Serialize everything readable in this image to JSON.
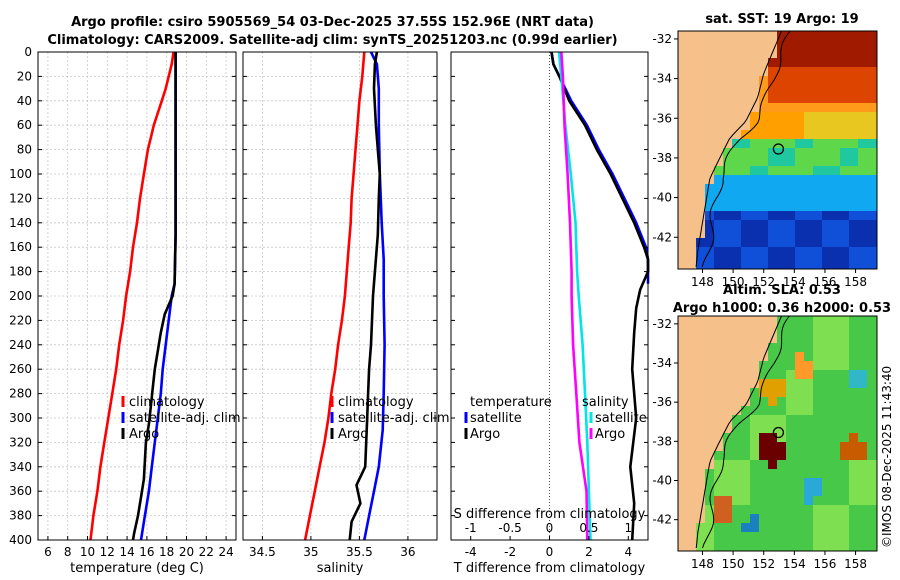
{
  "header": {
    "title_line1": "Argo profile: csiro 5905569_54 03-Dec-2025 37.55S 152.96E (NRT data)",
    "title_line2": "Climatology: CARS2009. Satellite-adj clim: synTS_20251203.nc (0.99d earlier)"
  },
  "maps": {
    "sst_title": "sat. SST: 19 Argo: 19",
    "sla_title1": "Altim. SLA: 0.53",
    "sla_title2": "Argo h1000: 0.36 h2000: 0.53",
    "lat_ticks": [
      "-32",
      "-34",
      "-36",
      "-38",
      "-40",
      "-42"
    ],
    "lon_ticks": [
      "148",
      "150",
      "152",
      "154",
      "156",
      "158"
    ],
    "argo_lon": 152.96,
    "argo_lat": -37.55
  },
  "credit": "©IMOS 08-Dec-2025 11:43:40",
  "colors": {
    "climatology": "#ff0000",
    "satellite": "#0000ff",
    "argo": "#000000",
    "salinity_clim": "#ff00ff",
    "salinity_sat": "#00e5e5"
  },
  "chart_data": [
    {
      "type": "line",
      "xlabel": "temperature (deg C)",
      "ylabel": "",
      "xlim": [
        5,
        25
      ],
      "ylim": [
        400,
        0
      ],
      "xticks": [
        "6",
        "8",
        "10",
        "12",
        "14",
        "16",
        "18",
        "20",
        "22",
        "24"
      ],
      "yticks": [
        "0",
        "20",
        "40",
        "60",
        "80",
        "100",
        "120",
        "140",
        "160",
        "180",
        "200",
        "220",
        "240",
        "260",
        "280",
        "300",
        "320",
        "340",
        "360",
        "380",
        "400"
      ],
      "grid": true,
      "legend": [
        "climatology",
        "satellite-adj. clim",
        "Argo"
      ],
      "series": [
        {
          "name": "climatology",
          "depth": [
            0,
            10,
            20,
            30,
            40,
            50,
            60,
            70,
            80,
            100,
            120,
            140,
            160,
            180,
            200,
            220,
            240,
            260,
            280,
            300,
            320,
            340,
            360,
            380,
            400
          ],
          "values": [
            18.7,
            18.5,
            18.2,
            17.9,
            17.5,
            17.1,
            16.7,
            16.4,
            16.1,
            15.7,
            15.3,
            15.0,
            14.6,
            14.3,
            13.9,
            13.6,
            13.2,
            12.9,
            12.5,
            12.1,
            11.7,
            11.3,
            11.0,
            10.6,
            10.3
          ]
        },
        {
          "name": "satellite-adj. clim",
          "depth": [
            0,
            50,
            100,
            150,
            190,
            200,
            220,
            240,
            260,
            280,
            300,
            320,
            340,
            360,
            380,
            400
          ],
          "values": [
            18.9,
            18.9,
            18.9,
            18.9,
            18.8,
            18.5,
            18.2,
            17.9,
            17.6,
            17.4,
            17.1,
            16.8,
            16.5,
            16.2,
            15.8,
            15.4
          ]
        },
        {
          "name": "Argo",
          "depth": [
            0,
            50,
            100,
            150,
            190,
            200,
            215,
            230,
            245,
            260,
            275,
            290,
            305,
            320,
            335,
            350,
            365,
            380,
            395,
            400
          ],
          "values": [
            18.9,
            18.9,
            18.9,
            18.9,
            18.8,
            18.6,
            17.8,
            17.4,
            17.1,
            16.8,
            16.6,
            16.4,
            16.2,
            15.9,
            15.8,
            15.7,
            15.4,
            15.1,
            14.7,
            14.6
          ]
        }
      ]
    },
    {
      "type": "line",
      "xlabel": "salinity",
      "ylabel": "",
      "xlim": [
        34.3,
        36.3
      ],
      "ylim": [
        400,
        0
      ],
      "xticks": [
        "34.5",
        "35",
        "35.5",
        "36"
      ],
      "grid": true,
      "legend": [
        "climatology",
        "satellite-adj. clim",
        "Argo"
      ],
      "series": [
        {
          "name": "climatology",
          "depth": [
            0,
            20,
            40,
            60,
            80,
            100,
            120,
            140,
            160,
            180,
            200,
            220,
            240,
            260,
            280,
            300,
            320,
            340,
            360,
            380,
            400
          ],
          "values": [
            35.55,
            35.53,
            35.5,
            35.48,
            35.46,
            35.44,
            35.42,
            35.41,
            35.39,
            35.37,
            35.35,
            35.32,
            35.28,
            35.25,
            35.21,
            35.18,
            35.14,
            35.09,
            35.04,
            34.99,
            34.94
          ]
        },
        {
          "name": "satellite-adj. clim",
          "depth": [
            0,
            10,
            30,
            60,
            100,
            140,
            170,
            200,
            240,
            280,
            310,
            340,
            360,
            380,
            400
          ],
          "values": [
            35.62,
            35.68,
            35.7,
            35.7,
            35.71,
            35.73,
            35.75,
            35.75,
            35.76,
            35.75,
            35.74,
            35.7,
            35.65,
            35.6,
            35.55
          ]
        },
        {
          "name": "Argo",
          "depth": [
            0,
            10,
            30,
            60,
            90,
            100,
            120,
            150,
            180,
            200,
            220,
            240,
            260,
            280,
            300,
            320,
            340,
            355,
            370,
            385,
            400
          ],
          "values": [
            35.68,
            35.66,
            35.65,
            35.67,
            35.7,
            35.71,
            35.7,
            35.69,
            35.66,
            35.64,
            35.63,
            35.62,
            35.6,
            35.59,
            35.58,
            35.57,
            35.56,
            35.47,
            35.51,
            35.42,
            35.4
          ]
        }
      ]
    },
    {
      "type": "line",
      "xlabel": "T difference from climatology",
      "xlabel_top": "S difference from climatology",
      "xlim": [
        -5,
        5
      ],
      "ylim": [
        400,
        0
      ],
      "xticks": [
        "-4",
        "-2",
        "0",
        "2",
        "4"
      ],
      "xticks_top": [
        "-1",
        "-0.5",
        "0",
        "0.5",
        "1"
      ],
      "legend_temperature": {
        "title": "temperature",
        "entries": [
          "satellite",
          "Argo"
        ]
      },
      "legend_salinity": {
        "title": "salinity",
        "entries": [
          "satellite",
          "Argo"
        ]
      },
      "series": [
        {
          "name": "temperature satellite",
          "depth": [
            0,
            10,
            20,
            40,
            60,
            80,
            100,
            120,
            140,
            160,
            170,
            180,
            190
          ],
          "values": [
            0.1,
            0.2,
            0.5,
            1.1,
            1.9,
            2.5,
            3.2,
            3.8,
            4.4,
            4.9,
            5.0,
            5.0,
            5.0
          ]
        },
        {
          "name": "temperature Argo",
          "depth": [
            0,
            10,
            20,
            40,
            60,
            80,
            100,
            120,
            140,
            160,
            170,
            180,
            195,
            210,
            230,
            260,
            300,
            340,
            370,
            400
          ],
          "values": [
            0.1,
            0.2,
            0.5,
            1.0,
            1.8,
            2.4,
            3.1,
            3.7,
            4.3,
            4.8,
            5.0,
            5.0,
            4.6,
            4.4,
            4.3,
            4.2,
            4.4,
            4.1,
            4.3,
            4.2
          ]
        },
        {
          "name": "salinity satellite",
          "depth": [
            0,
            20,
            60,
            100,
            140,
            180,
            200,
            240,
            280,
            320,
            360,
            400
          ],
          "values": [
            0.12,
            0.15,
            0.2,
            0.27,
            0.33,
            0.35,
            0.37,
            0.42,
            0.45,
            0.48,
            0.5,
            0.52
          ]
        },
        {
          "name": "salinity Argo",
          "depth": [
            0,
            20,
            60,
            100,
            140,
            180,
            200,
            240,
            280,
            320,
            360,
            400
          ],
          "values": [
            0.15,
            0.17,
            0.19,
            0.23,
            0.26,
            0.28,
            0.28,
            0.3,
            0.34,
            0.38,
            0.47,
            0.48
          ]
        }
      ]
    }
  ]
}
